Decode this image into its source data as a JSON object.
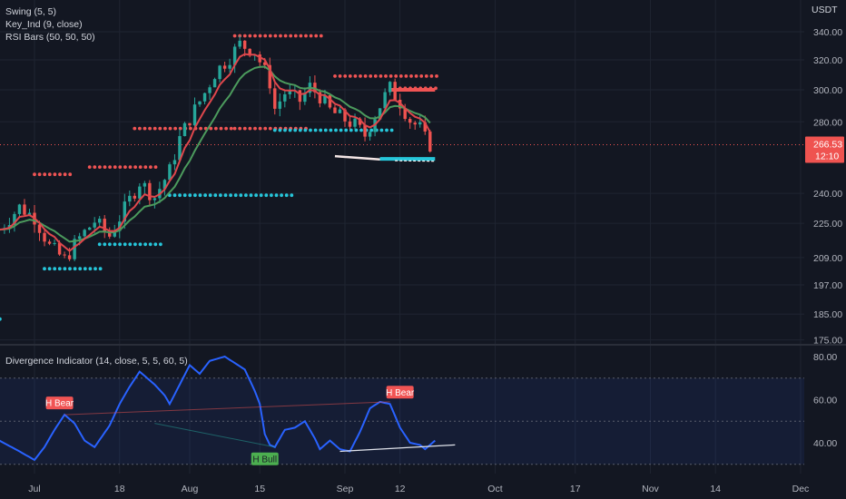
{
  "legend": {
    "swing": "Swing (5, 5)",
    "key": "Key_Ind  (9, close)",
    "rsi_bars": "RSI Bars (50, 50, 50)",
    "divergence": "Divergence Indicator (14, close, 5, 5, 60, 5)"
  },
  "price_axis": {
    "currency": "USDT",
    "ticks": [
      "340.00",
      "320.00",
      "300.00",
      "280.00",
      "240.00",
      "225.00",
      "209.00",
      "197.00",
      "185.00",
      "175.00"
    ],
    "current_price": "266.53",
    "countdown": "12:10"
  },
  "osc_axis": {
    "ticks": [
      "80.00",
      "60.00",
      "40.00"
    ]
  },
  "time_axis": {
    "ticks": [
      "Jul",
      "18",
      "Aug",
      "15",
      "Sep",
      "12",
      "Oct",
      "17",
      "Nov",
      "14",
      "Dec"
    ]
  },
  "colors": {
    "bg": "#131722",
    "up": "#26a69a",
    "down": "#ef5350",
    "ma_red": "#e0474c",
    "ma_green": "#4c9b5d",
    "osc": "#2962ff",
    "swing_high": "#f05454",
    "swing_low": "#26c6da"
  },
  "chart_data": {
    "type": "candlestick",
    "price_scale": "log",
    "ylim": [
      170,
      350
    ],
    "series": [
      {
        "name": "Swing (5, 5)",
        "type": "dotted-levels"
      },
      {
        "name": "Key_Ind  (9, close)",
        "type": "line"
      },
      {
        "name": "RSI Bars (50, 50, 50)",
        "type": "candles"
      }
    ],
    "swing_high_levels": [
      {
        "from": "Jul 1",
        "to": "Jul 9",
        "price": 250
      },
      {
        "from": "Jul 12",
        "to": "Jul 26",
        "price": 254
      },
      {
        "from": "Jul 21",
        "to": "Aug 10",
        "price": 276
      },
      {
        "from": "Aug 10",
        "to": "Aug 25",
        "price": 276
      },
      {
        "from": "Aug 10",
        "to": "Aug 28",
        "price": 337
      },
      {
        "from": "Aug 30",
        "to": "Sep 20",
        "price": 309
      },
      {
        "from": "Sep 11",
        "to": "Sep 20",
        "price": 301
      }
    ],
    "swing_low_levels": [
      {
        "from": "Jun 18",
        "to": "Jun 25",
        "price": 183
      },
      {
        "from": "Jul 3",
        "to": "Jul 15",
        "price": 204
      },
      {
        "from": "Jul 14",
        "to": "Jul 27",
        "price": 215
      },
      {
        "from": "Jul 28",
        "to": "Aug 22",
        "price": 239
      },
      {
        "from": "Aug 18",
        "to": "Sep 11",
        "price": 275
      }
    ],
    "divergence": {
      "ylim": [
        27,
        82
      ],
      "signals": [
        {
          "label": "H Bear",
          "date": "Jul 6",
          "value": 53
        },
        {
          "label": "H Bull",
          "date": "Aug 16",
          "value": 38
        },
        {
          "label": "H Bear",
          "date": "Sep 12",
          "value": 58
        }
      ],
      "band": [
        30,
        70
      ],
      "mid": 50
    }
  }
}
